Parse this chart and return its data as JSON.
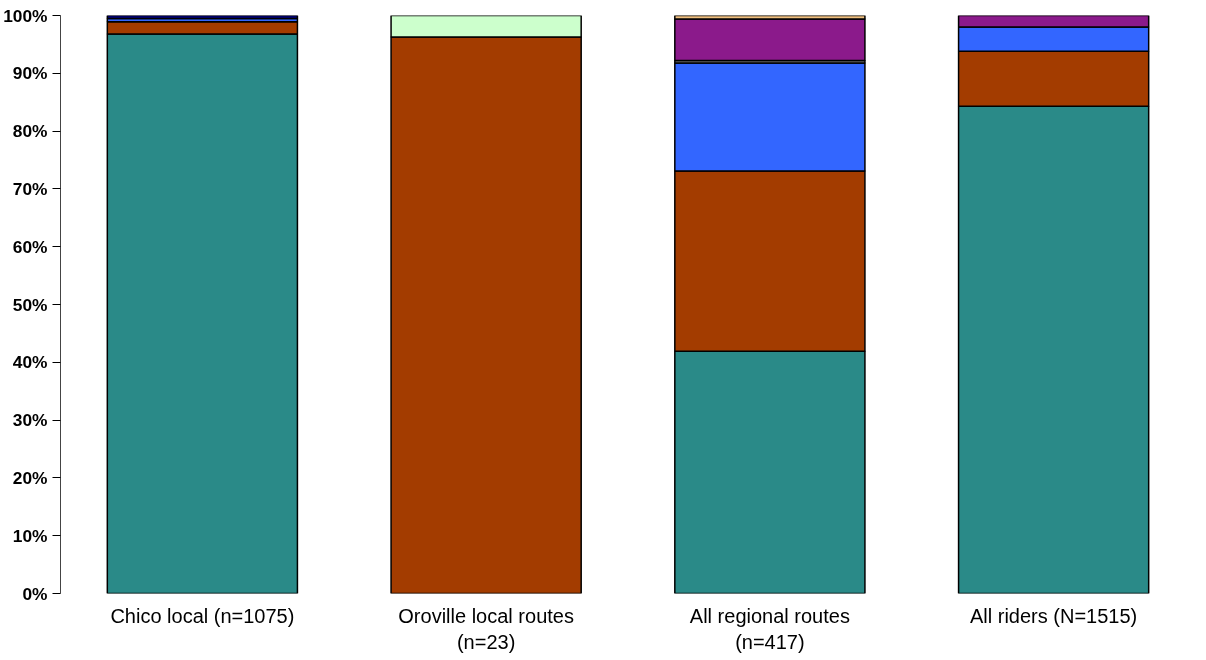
{
  "chart_data": {
    "type": "bar",
    "stacked": true,
    "categories": [
      "Chico local (n=1075)",
      "Oroville local routes\n(n=23)",
      "All regional routes\n(n=417)",
      "All riders (N=1515)"
    ],
    "series": [
      {
        "color": "#2a8a88",
        "values": [
          96.8,
          null,
          41.9,
          84.3
        ]
      },
      {
        "color": "#a33c00",
        "values": [
          2.1,
          96.3,
          31.2,
          9.5
        ]
      },
      {
        "color": "#3366ff",
        "values": [
          0.6,
          null,
          18.7,
          4.2
        ]
      },
      {
        "color": "#808080",
        "values": [
          null,
          null,
          0.4,
          null
        ]
      },
      {
        "color": "#8b1a8b",
        "values": [
          null,
          null,
          7.2,
          2.0
        ]
      },
      {
        "color": "#f0c080",
        "values": [
          null,
          null,
          0.6,
          null
        ]
      },
      {
        "color": "#ccffcc",
        "values": [
          null,
          3.7,
          null,
          null
        ]
      },
      {
        "color": "#000080",
        "values": [
          0.5,
          null,
          null,
          null
        ]
      }
    ],
    "ylim": [
      0,
      100
    ],
    "yticks": [
      {
        "value": 0,
        "label": "0%"
      },
      {
        "value": 10,
        "label": "10%"
      },
      {
        "value": 20,
        "label": "20%"
      },
      {
        "value": 30,
        "label": "30%"
      },
      {
        "value": 40,
        "label": "40%"
      },
      {
        "value": 50,
        "label": "50%"
      },
      {
        "value": 60,
        "label": "60%"
      },
      {
        "value": 70,
        "label": "70%"
      },
      {
        "value": 80,
        "label": "80%"
      },
      {
        "value": 90,
        "label": "90%"
      },
      {
        "value": 100,
        "label": "100%"
      }
    ],
    "grid": false
  }
}
